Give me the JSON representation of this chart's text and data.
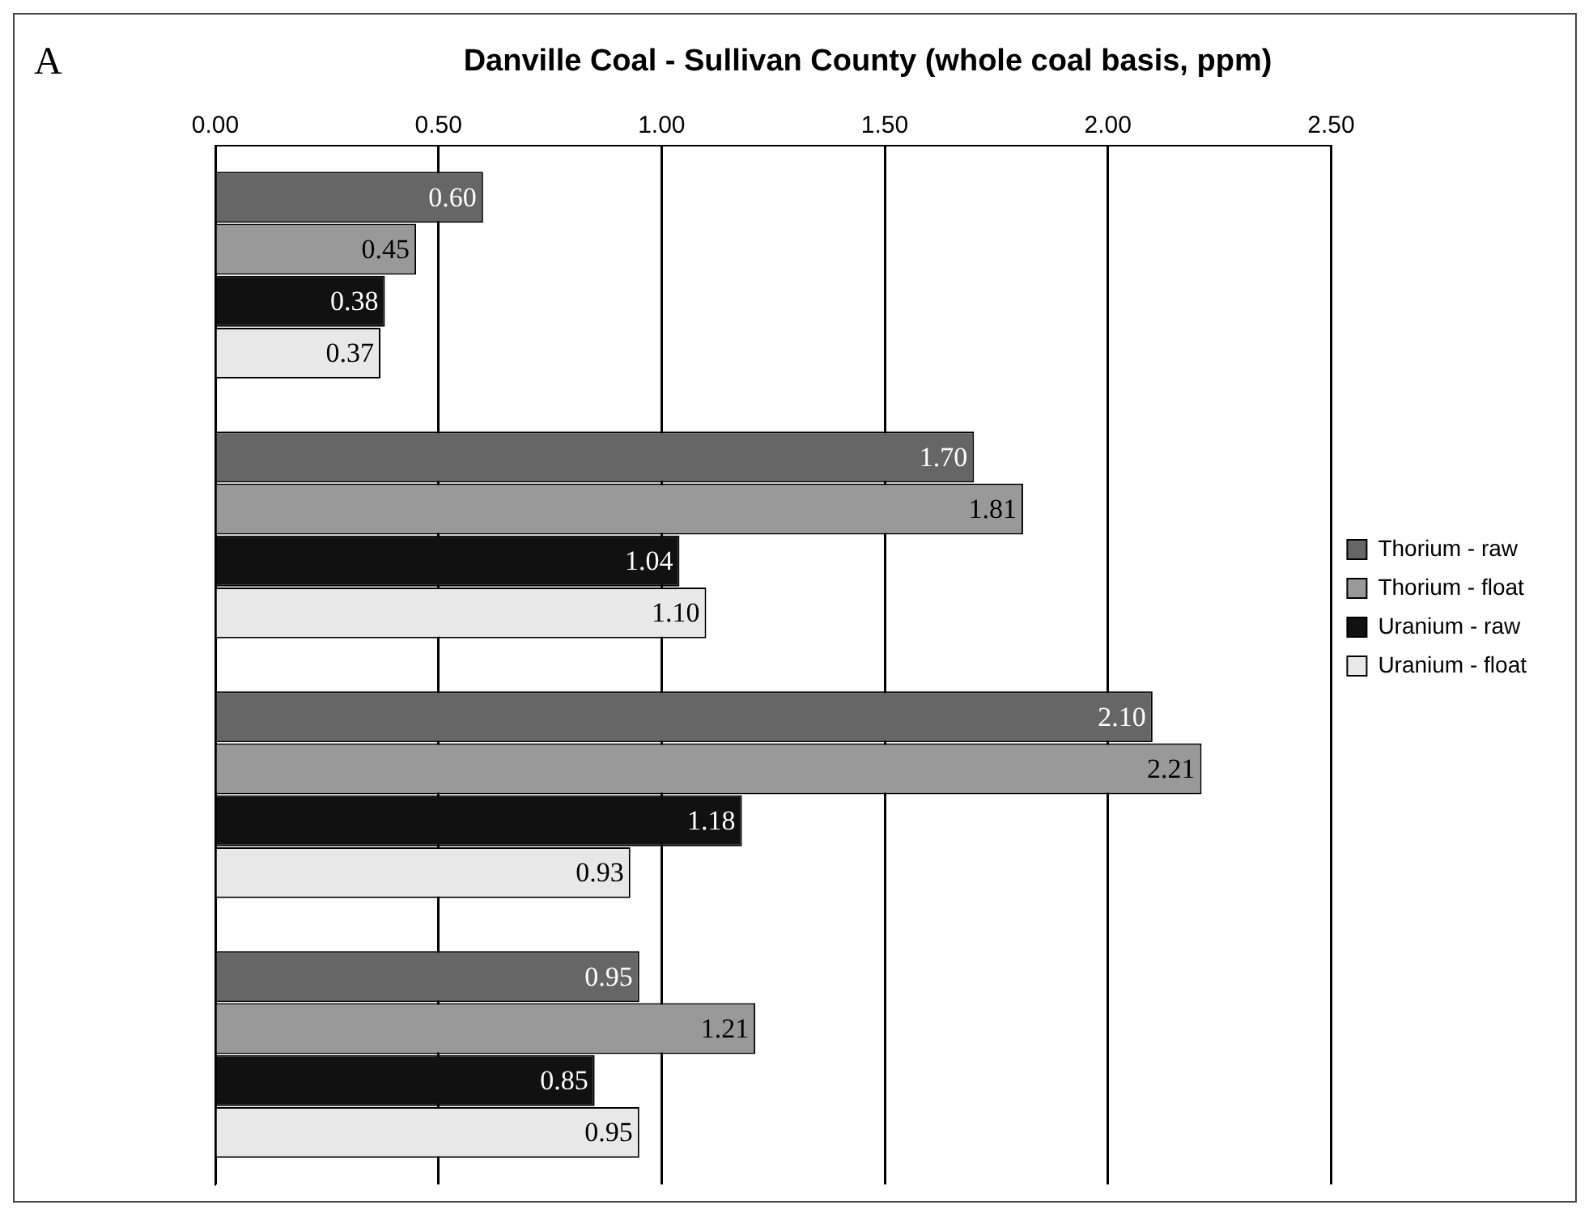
{
  "chart_data": {
    "type": "bar",
    "orientation": "horizontal",
    "title": "Danville Coal - Sullivan County (whole coal basis, ppm)",
    "annotations": [
      "A"
    ],
    "categories": [
      null,
      null,
      null,
      null
    ],
    "series": [
      {
        "name": "Thorium - raw",
        "color": "#666666",
        "values": [
          0.6,
          1.7,
          2.1,
          0.95
        ],
        "value_labels": [
          "0.60",
          "1.70",
          "2.10",
          "0.95"
        ]
      },
      {
        "name": "Thorium - float",
        "color": "#999999",
        "values": [
          0.45,
          1.81,
          2.21,
          1.21
        ],
        "value_labels": [
          "0.45",
          "1.81",
          "2.21",
          "1.21"
        ]
      },
      {
        "name": "Uranium - raw",
        "color": "#111111",
        "values": [
          0.38,
          1.04,
          1.18,
          0.85
        ],
        "value_labels": [
          "0.38",
          "1.04",
          "1.18",
          "0.85"
        ]
      },
      {
        "name": "Uranium - float",
        "color": "#e8e8e8",
        "values": [
          0.37,
          1.1,
          0.93,
          0.95
        ],
        "value_labels": [
          "0.37",
          "1.10",
          "0.93",
          "0.95"
        ]
      }
    ],
    "xlim": [
      0,
      2.5
    ],
    "xticks": [
      {
        "value": 0,
        "label": "0.00"
      },
      {
        "value": 0.5,
        "label": "0.50"
      },
      {
        "value": 1,
        "label": "1.00"
      },
      {
        "value": 1.5,
        "label": "1.50"
      },
      {
        "value": 2,
        "label": "2.00"
      },
      {
        "value": 2.5,
        "label": "2.50"
      }
    ],
    "grid": "x",
    "legend": "right"
  }
}
